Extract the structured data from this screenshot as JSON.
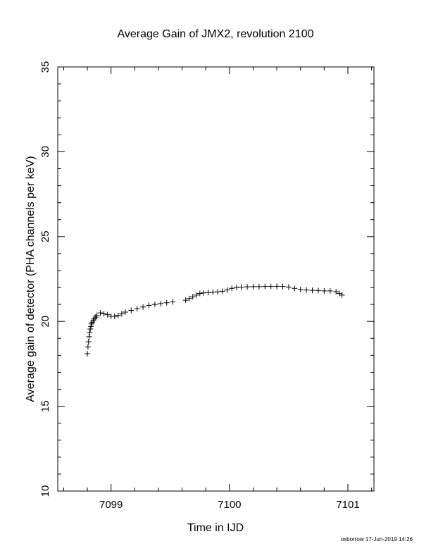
{
  "chart_data": {
    "type": "scatter",
    "title": "Average Gain of JMX2, revolution 2100",
    "xlabel": "Time in IJD",
    "ylabel": "Average gain of detector (PHA channels per keV)",
    "xlim": [
      7098.55,
      7101.22
    ],
    "ylim": [
      10,
      35
    ],
    "x_ticks": [
      7099,
      7100,
      7101
    ],
    "y_ticks": [
      10,
      15,
      20,
      25,
      30,
      35
    ],
    "x_minor_step": 0.2,
    "y_minor_step": 1,
    "grid": false,
    "marker": "plus",
    "color": "#000000",
    "series": [
      {
        "x": [
          7098.8,
          7098.805,
          7098.81,
          7098.815,
          7098.82,
          7098.825,
          7098.83,
          7098.835,
          7098.84,
          7098.85,
          7098.86,
          7098.87,
          7098.88,
          7098.91,
          7098.94,
          7098.97,
          7099.0,
          7099.03,
          7099.06,
          7099.09,
          7099.12,
          7099.17,
          7099.22,
          7099.27,
          7099.32,
          7099.37,
          7099.42,
          7099.47,
          7099.52,
          7099.63,
          7099.66,
          7099.69,
          7099.72,
          7099.75,
          7099.78,
          7099.82,
          7099.86,
          7099.9,
          7099.94,
          7099.98,
          7100.02,
          7100.06,
          7100.1,
          7100.15,
          7100.2,
          7100.25,
          7100.3,
          7100.35,
          7100.4,
          7100.45,
          7100.5,
          7100.55,
          7100.6,
          7100.65,
          7100.7,
          7100.75,
          7100.8,
          7100.85,
          7100.9,
          7100.93,
          7100.95
        ],
        "y": [
          18.1,
          18.5,
          18.8,
          19.1,
          19.35,
          19.55,
          19.7,
          19.85,
          19.95,
          20.05,
          20.15,
          20.25,
          20.35,
          20.5,
          20.45,
          20.4,
          20.3,
          20.3,
          20.35,
          20.45,
          20.55,
          20.65,
          20.75,
          20.85,
          20.95,
          21.0,
          21.05,
          21.1,
          21.15,
          21.25,
          21.35,
          21.45,
          21.55,
          21.65,
          21.68,
          21.7,
          21.72,
          21.74,
          21.78,
          21.85,
          21.95,
          22.0,
          22.02,
          22.04,
          22.05,
          22.05,
          22.06,
          22.06,
          22.07,
          22.06,
          22.03,
          21.95,
          21.88,
          21.85,
          21.83,
          21.82,
          21.8,
          21.8,
          21.75,
          21.65,
          21.55
        ]
      }
    ]
  },
  "footer": {
    "credit": "oxborrow 17-Jun-2019 14:26"
  }
}
